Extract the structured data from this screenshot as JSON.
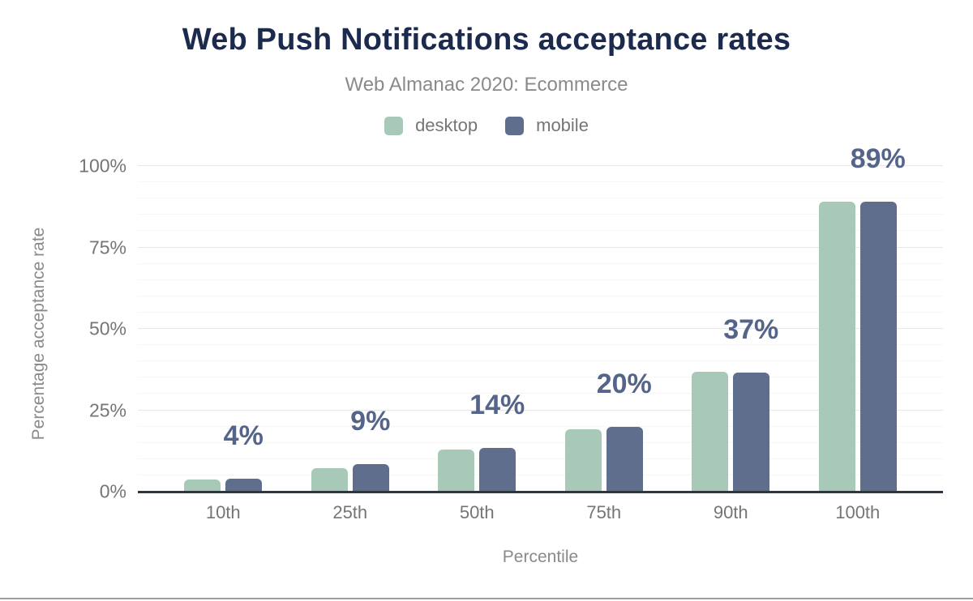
{
  "title": "Web Push Notifications acceptance rates",
  "subtitle": "Web Almanac 2020: Ecommerce",
  "colors": {
    "title": "#1c2a4d",
    "subtitle": "#8a8a8a",
    "axis_text": "#757575",
    "desktop": "#a9c9b8",
    "mobile": "#5f6e8c",
    "bar_label": "#55658a",
    "axis_line": "#30363d",
    "grid_major": "#e8e8e8",
    "grid_minor": "#f6f6f6",
    "bottom_border": "#9e9e9e"
  },
  "chart_data": {
    "type": "bar",
    "title": "Web Push Notifications acceptance rates",
    "subtitle": "Web Almanac 2020: Ecommerce",
    "categories": [
      "10th",
      "25th",
      "50th",
      "75th",
      "90th",
      "100th"
    ],
    "series": [
      {
        "name": "desktop",
        "color": "#a9c9b8",
        "values": [
          3.7,
          7.2,
          12.9,
          19.2,
          36.8,
          89.0
        ]
      },
      {
        "name": "mobile",
        "color": "#5f6e8c",
        "values": [
          3.9,
          8.5,
          13.5,
          19.9,
          36.6,
          89.1
        ]
      }
    ],
    "bar_labels": [
      "4%",
      "9%",
      "14%",
      "20%",
      "37%",
      "89%"
    ],
    "bar_labels_over_series": "mobile",
    "xlabel": "Percentile",
    "ylabel": "Percentage acceptance rate",
    "ylim": [
      0,
      100
    ],
    "y_ticks": [
      {
        "value": 0,
        "label": "0%"
      },
      {
        "value": 25,
        "label": "25%"
      },
      {
        "value": 50,
        "label": "50%"
      },
      {
        "value": 75,
        "label": "75%"
      },
      {
        "value": 100,
        "label": "100%"
      }
    ],
    "grid": {
      "major_every": 25,
      "minor_every": 5,
      "minor_visible": true
    },
    "legend_position": "top"
  },
  "legend": [
    {
      "label": "desktop",
      "color": "#a9c9b8"
    },
    {
      "label": "mobile",
      "color": "#5f6e8c"
    }
  ]
}
